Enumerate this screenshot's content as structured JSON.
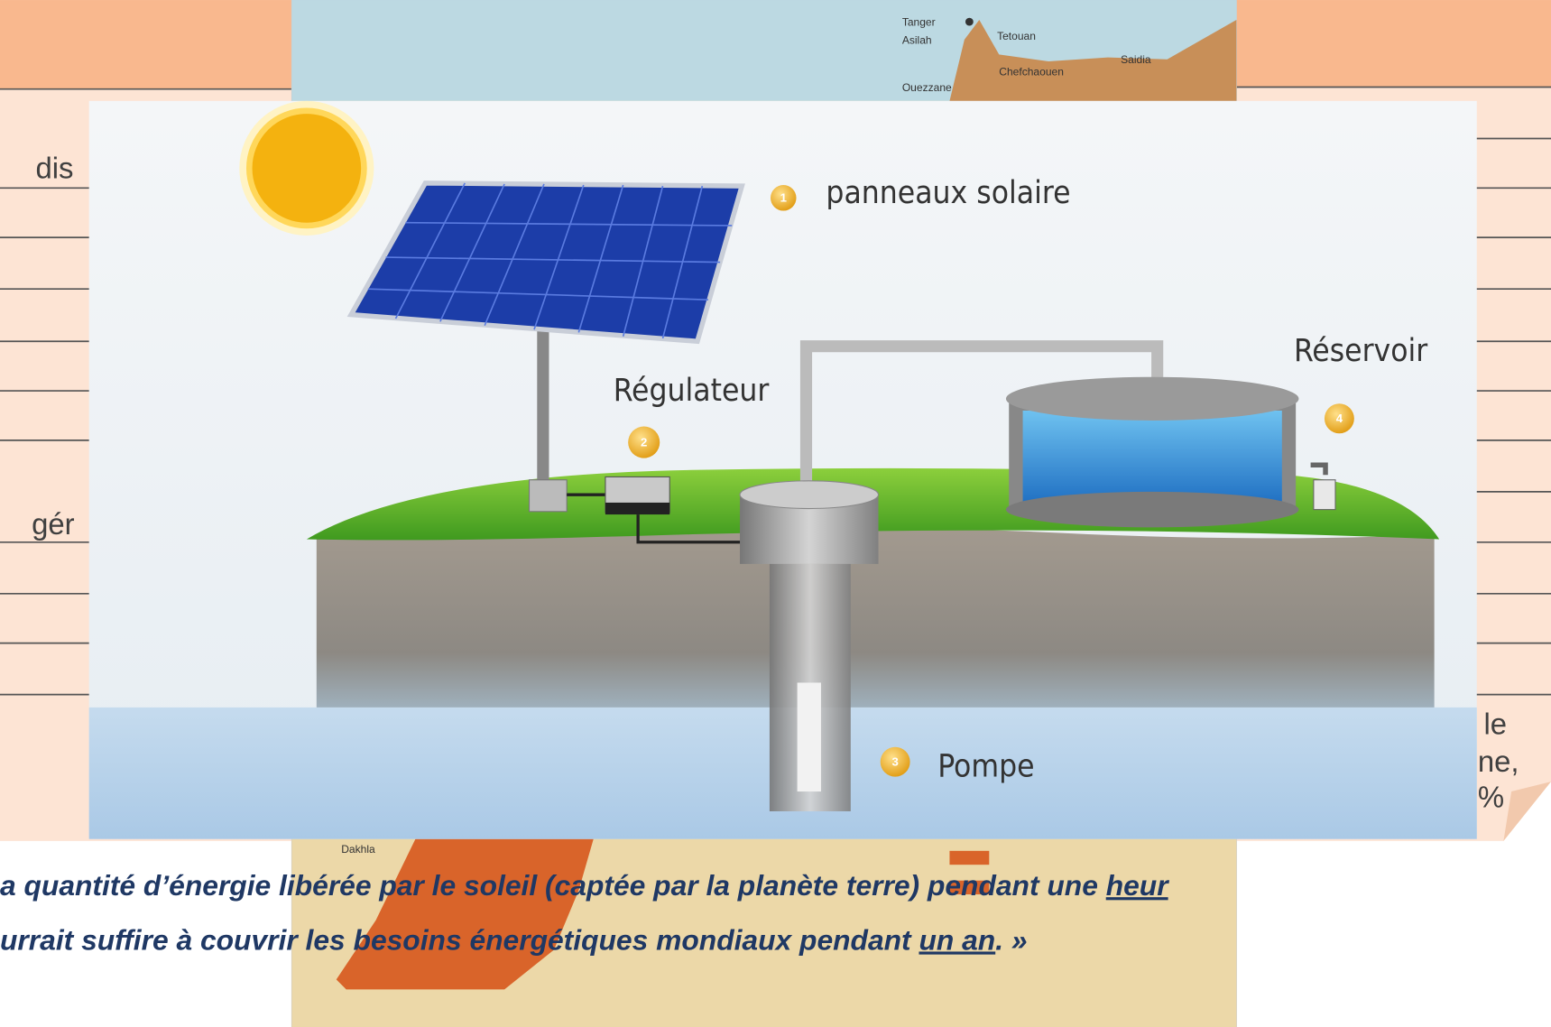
{
  "background_slide": {
    "left_cells": [
      "dis",
      "gér"
    ],
    "right_cells": [
      "le",
      "ne,",
      "%"
    ]
  },
  "map": {
    "labels": [
      "Tanger",
      "Asilah",
      "Tetouan",
      "Saidia",
      "Chefchaouen",
      "Ouezzane",
      "Dakhla"
    ]
  },
  "diagram": {
    "components": [
      {
        "number": "1",
        "label": "panneaux solaire"
      },
      {
        "number": "2",
        "label": "Régulateur"
      },
      {
        "number": "3",
        "label": "Pompe"
      },
      {
        "number": "4",
        "label": "Réservoir"
      }
    ]
  },
  "quote": {
    "line1": [
      "a quantité d’énergie libérée par le soleil (captée par la planète terre) pendant une ",
      "heur"
    ],
    "line2": [
      "urrait suffire à couvrir les besoins énergétiques mondiaux pendant ",
      "un an",
      ". »"
    ]
  }
}
